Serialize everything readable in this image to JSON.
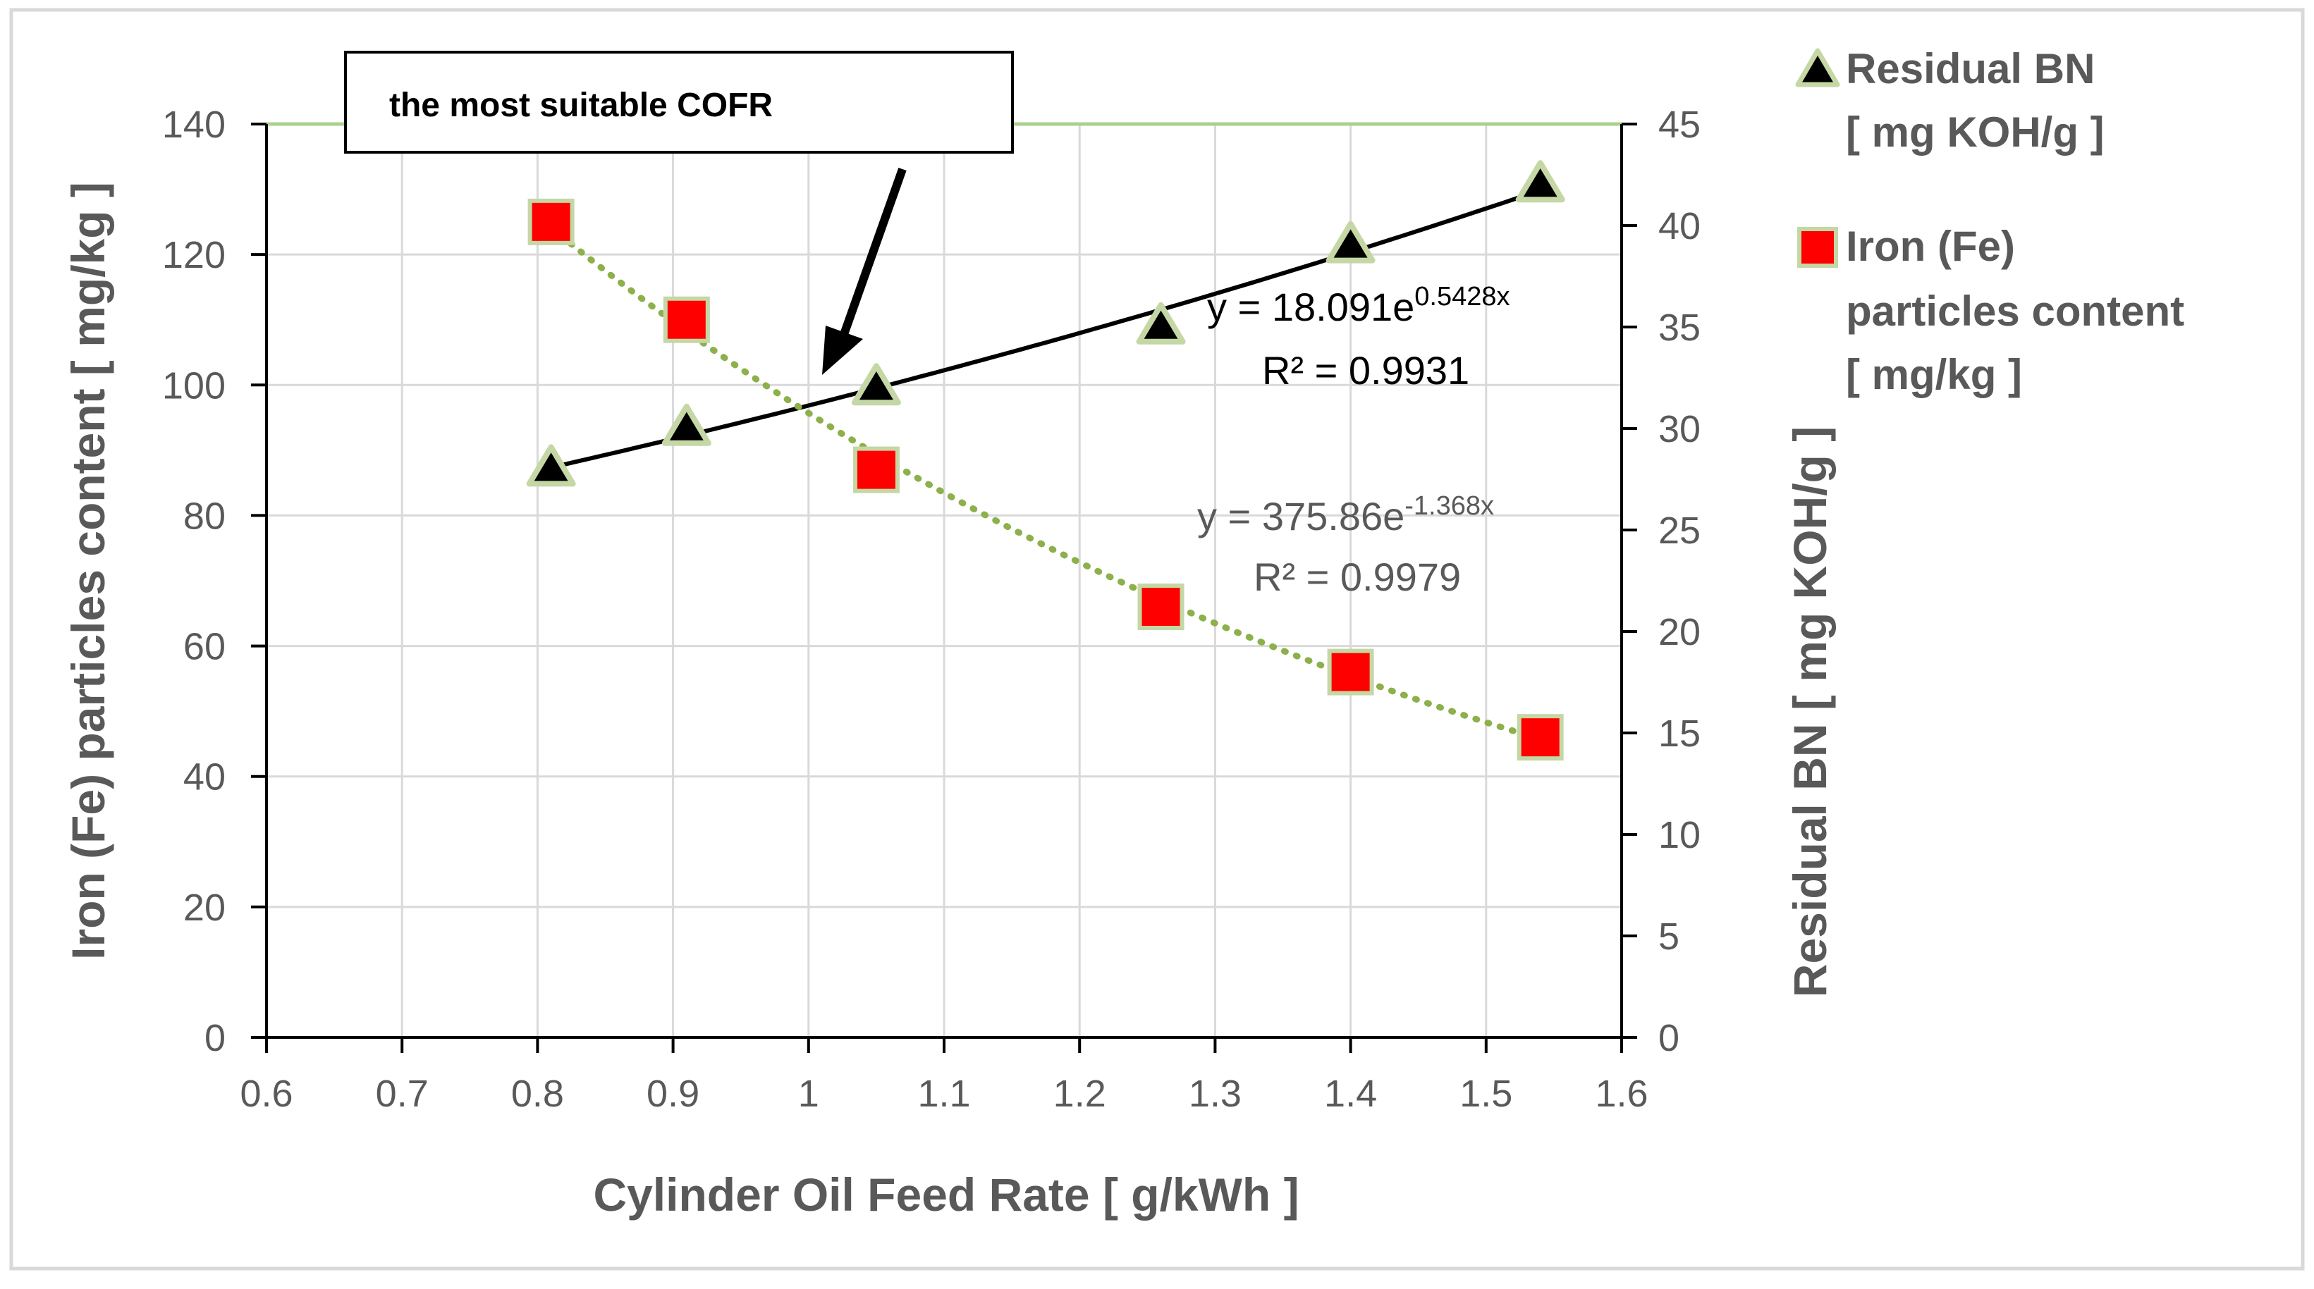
{
  "chart_data": {
    "type": "scatter",
    "x": [
      0.81,
      0.91,
      1.05,
      1.26,
      1.4,
      1.54
    ],
    "series": [
      {
        "name": "Residual BN [ mg KOH/g ]",
        "axis": "right",
        "marker": "triangle",
        "marker_color": "#000000",
        "marker_edge": "#c4d7a5",
        "values": [
          28,
          30,
          32,
          35,
          39,
          42
        ],
        "trendline": {
          "type": "exponential",
          "style": "solid",
          "color": "#000000",
          "a": 18.091,
          "b": 0.5428,
          "equation_prefix": "y = 18.091e",
          "equation_exp": "0.5428x",
          "r2_label": "R² = 0.9931"
        }
      },
      {
        "name": "Iron (Fe) particles content [ mg/kg ]",
        "axis": "left",
        "marker": "square",
        "marker_color": "#ff0000",
        "marker_edge": "#c4d7a5",
        "values": [
          125,
          110,
          87,
          66,
          56,
          46
        ],
        "trendline": {
          "type": "exponential",
          "style": "dotted",
          "color": "#8cb04a",
          "a": 375.86,
          "b": -1.368,
          "equation_prefix": "y = 375.86e",
          "equation_exp": "-1.368x",
          "r2_label": "R² = 0.9979"
        }
      }
    ],
    "xlabel": "Cylinder Oil Feed Rate  [ g/kWh ]",
    "ylabel_left": "Iron (Fe) particles content [ mg/kg ]",
    "ylabel_right": "Residual BN [ mg KOH/g ]",
    "xlim": [
      0.6,
      1.6
    ],
    "x_ticks": [
      "0.6",
      "0.7",
      "0.8",
      "0.9",
      "1",
      "1.1",
      "1.2",
      "1.3",
      "1.4",
      "1.5",
      "1.6"
    ],
    "ylim_left": [
      0,
      140
    ],
    "y_ticks_left": [
      "0",
      "20",
      "40",
      "60",
      "80",
      "100",
      "120",
      "140"
    ],
    "ylim_right": [
      0,
      45
    ],
    "y_ticks_right": [
      "0",
      "5",
      "10",
      "15",
      "20",
      "25",
      "30",
      "35",
      "40",
      "45"
    ],
    "grid": true,
    "legend": {
      "position": "top-right",
      "entries": [
        {
          "lines": [
            "Residual BN",
            "[ mg KOH/g ]"
          ]
        },
        {
          "lines": [
            "Iron (Fe)",
            "particles content",
            "[ mg/kg ]"
          ]
        }
      ]
    },
    "annotation": {
      "text": "the most suitable COFR",
      "arrow_target_x": 1.01
    },
    "colors": {
      "grid": "#d9d9d9",
      "top_border": "#a9d18e",
      "text": "#595959",
      "frame": "#d9d9d9"
    }
  }
}
